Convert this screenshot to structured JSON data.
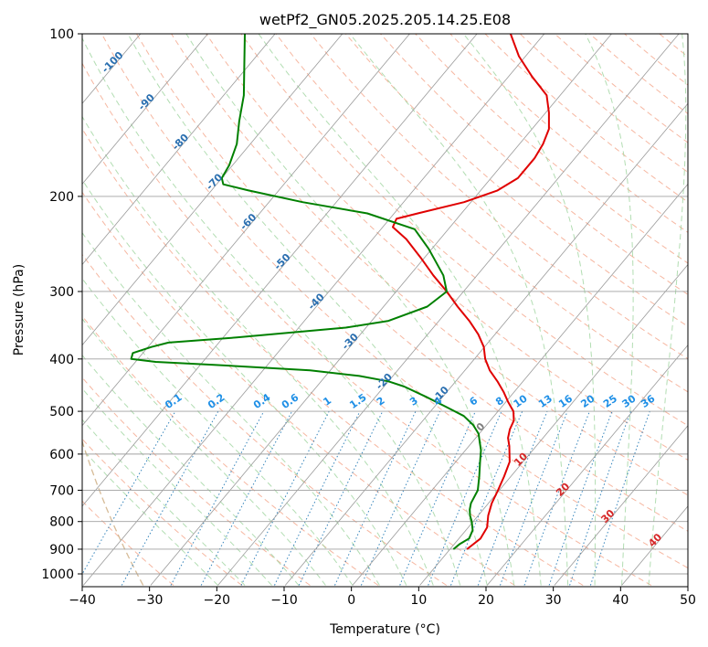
{
  "title": "wetPf2_GN05.2025.205.14.25.E08",
  "colors": {
    "temperature": "#e00000",
    "dewpoint": "#008000",
    "grid": "#a0a0a0",
    "skew": "#9a9a9a",
    "dry_adiabat": "#f4a58a",
    "moist_adiabat": "#9fd49f",
    "mixing_ratio": "#1f77b4",
    "mixing_label": "#1e8fe6",
    "isotherm_label_cold": "#2a6fb0",
    "isotherm_label_warm": "#d62728",
    "isotherm_label_zero": "#808080",
    "ozone_curve": "#d2b48c"
  },
  "chart_data": {
    "type": "skew-t",
    "title": "wetPf2_GN05.2025.205.14.25.E08",
    "xlabel": "Temperature (°C)",
    "ylabel": "Pressure (hPa)",
    "xlim": [
      -40,
      50
    ],
    "ylim": [
      1050,
      100
    ],
    "y_scale": "log",
    "x_ticks": [
      -40,
      -30,
      -20,
      -10,
      0,
      10,
      20,
      30,
      40,
      50
    ],
    "x_tick_labels": [
      "−40",
      "−30",
      "−20",
      "−10",
      "0",
      "10",
      "20",
      "30",
      "40",
      "50"
    ],
    "y_ticks": [
      100,
      200,
      300,
      400,
      500,
      600,
      700,
      800,
      900,
      1000
    ],
    "y_tick_labels": [
      "100",
      "200",
      "300",
      "400",
      "500",
      "600",
      "700",
      "800",
      "900",
      "1000"
    ],
    "grid": true,
    "isotherm_labels": [
      {
        "text": "-100",
        "value": -100
      },
      {
        "text": "-90",
        "value": -90
      },
      {
        "text": "-80",
        "value": -80
      },
      {
        "text": "-70",
        "value": -70
      },
      {
        "text": "-60",
        "value": -60
      },
      {
        "text": "-50",
        "value": -50
      },
      {
        "text": "-40",
        "value": -40
      },
      {
        "text": "-30",
        "value": -30
      },
      {
        "text": "-20",
        "value": -20
      },
      {
        "text": "-10",
        "value": -10
      },
      {
        "text": "0",
        "value": 0
      },
      {
        "text": "10",
        "value": 10
      },
      {
        "text": "20",
        "value": 20
      },
      {
        "text": "30",
        "value": 30
      },
      {
        "text": "40",
        "value": 40
      }
    ],
    "mixing_ratio_labels": [
      "0.1",
      "0.2",
      "0.4",
      "0.6",
      "1",
      "1.5",
      "2",
      "3",
      "4",
      "6",
      "8",
      "10",
      "13",
      "16",
      "20",
      "25",
      "30",
      "36"
    ],
    "series": [
      {
        "name": "",
        "key": "temperature",
        "points": [
          {
            "p": 900,
            "t": 12.5
          },
          {
            "p": 860,
            "t": 13.2
          },
          {
            "p": 820,
            "t": 12.8
          },
          {
            "p": 780,
            "t": 11.5
          },
          {
            "p": 740,
            "t": 10.5
          },
          {
            "p": 700,
            "t": 9.8
          },
          {
            "p": 660,
            "t": 9.0
          },
          {
            "p": 620,
            "t": 8.0
          },
          {
            "p": 580,
            "t": 6.0
          },
          {
            "p": 560,
            "t": 4.8
          },
          {
            "p": 540,
            "t": 4.0
          },
          {
            "p": 520,
            "t": 3.5
          },
          {
            "p": 500,
            "t": 2.3
          },
          {
            "p": 480,
            "t": 0.3
          },
          {
            "p": 460,
            "t": -1.6
          },
          {
            "p": 440,
            "t": -3.8
          },
          {
            "p": 420,
            "t": -6.3
          },
          {
            "p": 400,
            "t": -8.4
          },
          {
            "p": 380,
            "t": -10.1
          },
          {
            "p": 360,
            "t": -12.5
          },
          {
            "p": 340,
            "t": -15.5
          },
          {
            "p": 320,
            "t": -19.0
          },
          {
            "p": 300,
            "t": -22.5
          },
          {
            "p": 280,
            "t": -26.5
          },
          {
            "p": 260,
            "t": -30.5
          },
          {
            "p": 240,
            "t": -35.0
          },
          {
            "p": 228,
            "t": -38.5
          },
          {
            "p": 220,
            "t": -39.0
          },
          {
            "p": 215,
            "t": -36.5
          },
          {
            "p": 205,
            "t": -31.0
          },
          {
            "p": 195,
            "t": -27.5
          },
          {
            "p": 185,
            "t": -26.0
          },
          {
            "p": 170,
            "t": -26.0
          },
          {
            "p": 160,
            "t": -26.5
          },
          {
            "p": 150,
            "t": -27.5
          },
          {
            "p": 140,
            "t": -29.5
          },
          {
            "p": 130,
            "t": -32.0
          },
          {
            "p": 120,
            "t": -36.5
          },
          {
            "p": 110,
            "t": -41.0
          },
          {
            "p": 100,
            "t": -45.0
          }
        ]
      },
      {
        "name": "",
        "key": "dewpoint",
        "points": [
          {
            "p": 900,
            "t": 10.5
          },
          {
            "p": 880,
            "t": 10.8
          },
          {
            "p": 860,
            "t": 11.5
          },
          {
            "p": 830,
            "t": 11.0
          },
          {
            "p": 800,
            "t": 9.8
          },
          {
            "p": 780,
            "t": 8.8
          },
          {
            "p": 760,
            "t": 8.0
          },
          {
            "p": 740,
            "t": 7.4
          },
          {
            "p": 700,
            "t": 6.8
          },
          {
            "p": 660,
            "t": 5.3
          },
          {
            "p": 620,
            "t": 3.6
          },
          {
            "p": 590,
            "t": 2.3
          },
          {
            "p": 570,
            "t": 1.1
          },
          {
            "p": 550,
            "t": -0.1
          },
          {
            "p": 530,
            "t": -2.0
          },
          {
            "p": 510,
            "t": -4.5
          },
          {
            "p": 490,
            "t": -8.4
          },
          {
            "p": 470,
            "t": -12.5
          },
          {
            "p": 450,
            "t": -17.0
          },
          {
            "p": 440,
            "t": -20.0
          },
          {
            "p": 430,
            "t": -25.0
          },
          {
            "p": 420,
            "t": -33.0
          },
          {
            "p": 410,
            "t": -48.0
          },
          {
            "p": 405,
            "t": -57.0
          },
          {
            "p": 400,
            "t": -61.0
          },
          {
            "p": 390,
            "t": -61.5
          },
          {
            "p": 380,
            "t": -59.5
          },
          {
            "p": 373,
            "t": -57.5
          },
          {
            "p": 365,
            "t": -48.0
          },
          {
            "p": 350,
            "t": -33.0
          },
          {
            "p": 340,
            "t": -27.5
          },
          {
            "p": 320,
            "t": -23.5
          },
          {
            "p": 300,
            "t": -22.5
          },
          {
            "p": 280,
            "t": -25.0
          },
          {
            "p": 250,
            "t": -30.5
          },
          {
            "p": 230,
            "t": -35.0
          },
          {
            "p": 215,
            "t": -44.0
          },
          {
            "p": 205,
            "t": -55.0
          },
          {
            "p": 195,
            "t": -64.5
          },
          {
            "p": 190,
            "t": -69.0
          },
          {
            "p": 185,
            "t": -70.0
          },
          {
            "p": 175,
            "t": -70.5
          },
          {
            "p": 160,
            "t": -72.0
          },
          {
            "p": 145,
            "t": -74.5
          },
          {
            "p": 130,
            "t": -77.0
          },
          {
            "p": 115,
            "t": -80.5
          },
          {
            "p": 100,
            "t": -84.5
          }
        ]
      }
    ]
  }
}
